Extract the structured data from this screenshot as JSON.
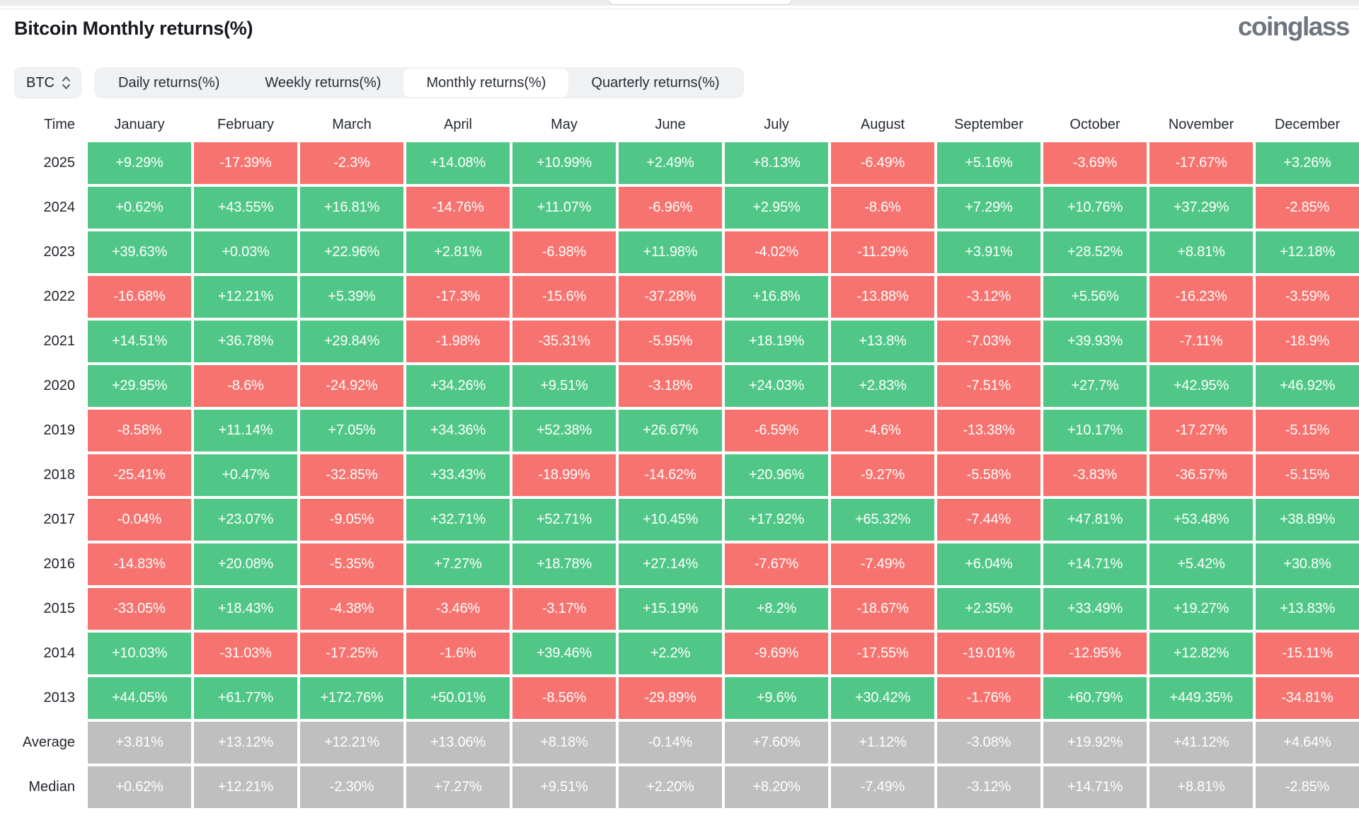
{
  "header": {
    "title": "Bitcoin Monthly returns(%)",
    "logo": "coinglass"
  },
  "controls": {
    "coin": "BTC",
    "coin_selector_icon": "updown-chevron-icon",
    "tabs": [
      {
        "id": "daily",
        "label": "Daily returns(%)",
        "selected": false
      },
      {
        "id": "weekly",
        "label": "Weekly returns(%)",
        "selected": false
      },
      {
        "id": "monthly",
        "label": "Monthly returns(%)",
        "selected": true
      },
      {
        "id": "quarterly",
        "label": "Quarterly returns(%)",
        "selected": false
      }
    ]
  },
  "colors": {
    "positive": "#50c787",
    "negative": "#f7736f",
    "summary": "#bfbfbf"
  },
  "chart_data": {
    "type": "heatmap",
    "title": "Bitcoin Monthly returns(%)",
    "row_header": "Time",
    "columns": [
      "January",
      "February",
      "March",
      "April",
      "May",
      "June",
      "July",
      "August",
      "September",
      "October",
      "November",
      "December"
    ],
    "color_rule": "green = positive return, red = negative return, gray = summary rows (Average/Median)",
    "rows": [
      {
        "label": "2025",
        "type": "year",
        "values": [
          "+9.29%",
          "-17.39%",
          "-2.3%",
          "+14.08%",
          "+10.99%",
          "+2.49%",
          "+8.13%",
          "-6.49%",
          "+5.16%",
          "-3.69%",
          "-17.67%",
          "+3.26%"
        ]
      },
      {
        "label": "2024",
        "type": "year",
        "values": [
          "+0.62%",
          "+43.55%",
          "+16.81%",
          "-14.76%",
          "+11.07%",
          "-6.96%",
          "+2.95%",
          "-8.6%",
          "+7.29%",
          "+10.76%",
          "+37.29%",
          "-2.85%"
        ]
      },
      {
        "label": "2023",
        "type": "year",
        "values": [
          "+39.63%",
          "+0.03%",
          "+22.96%",
          "+2.81%",
          "-6.98%",
          "+11.98%",
          "-4.02%",
          "-11.29%",
          "+3.91%",
          "+28.52%",
          "+8.81%",
          "+12.18%"
        ]
      },
      {
        "label": "2022",
        "type": "year",
        "values": [
          "-16.68%",
          "+12.21%",
          "+5.39%",
          "-17.3%",
          "-15.6%",
          "-37.28%",
          "+16.8%",
          "-13.88%",
          "-3.12%",
          "+5.56%",
          "-16.23%",
          "-3.59%"
        ]
      },
      {
        "label": "2021",
        "type": "year",
        "values": [
          "+14.51%",
          "+36.78%",
          "+29.84%",
          "-1.98%",
          "-35.31%",
          "-5.95%",
          "+18.19%",
          "+13.8%",
          "-7.03%",
          "+39.93%",
          "-7.11%",
          "-18.9%"
        ]
      },
      {
        "label": "2020",
        "type": "year",
        "values": [
          "+29.95%",
          "-8.6%",
          "-24.92%",
          "+34.26%",
          "+9.51%",
          "-3.18%",
          "+24.03%",
          "+2.83%",
          "-7.51%",
          "+27.7%",
          "+42.95%",
          "+46.92%"
        ]
      },
      {
        "label": "2019",
        "type": "year",
        "values": [
          "-8.58%",
          "+11.14%",
          "+7.05%",
          "+34.36%",
          "+52.38%",
          "+26.67%",
          "-6.59%",
          "-4.6%",
          "-13.38%",
          "+10.17%",
          "-17.27%",
          "-5.15%"
        ]
      },
      {
        "label": "2018",
        "type": "year",
        "values": [
          "-25.41%",
          "+0.47%",
          "-32.85%",
          "+33.43%",
          "-18.99%",
          "-14.62%",
          "+20.96%",
          "-9.27%",
          "-5.58%",
          "-3.83%",
          "-36.57%",
          "-5.15%"
        ]
      },
      {
        "label": "2017",
        "type": "year",
        "values": [
          "-0.04%",
          "+23.07%",
          "-9.05%",
          "+32.71%",
          "+52.71%",
          "+10.45%",
          "+17.92%",
          "+65.32%",
          "-7.44%",
          "+47.81%",
          "+53.48%",
          "+38.89%"
        ]
      },
      {
        "label": "2016",
        "type": "year",
        "values": [
          "-14.83%",
          "+20.08%",
          "-5.35%",
          "+7.27%",
          "+18.78%",
          "+27.14%",
          "-7.67%",
          "-7.49%",
          "+6.04%",
          "+14.71%",
          "+5.42%",
          "+30.8%"
        ]
      },
      {
        "label": "2015",
        "type": "year",
        "values": [
          "-33.05%",
          "+18.43%",
          "-4.38%",
          "-3.46%",
          "-3.17%",
          "+15.19%",
          "+8.2%",
          "-18.67%",
          "+2.35%",
          "+33.49%",
          "+19.27%",
          "+13.83%"
        ]
      },
      {
        "label": "2014",
        "type": "year",
        "values": [
          "+10.03%",
          "-31.03%",
          "-17.25%",
          "-1.6%",
          "+39.46%",
          "+2.2%",
          "-9.69%",
          "-17.55%",
          "-19.01%",
          "-12.95%",
          "+12.82%",
          "-15.11%"
        ]
      },
      {
        "label": "2013",
        "type": "year",
        "values": [
          "+44.05%",
          "+61.77%",
          "+172.76%",
          "+50.01%",
          "-8.56%",
          "-29.89%",
          "+9.6%",
          "+30.42%",
          "-1.76%",
          "+60.79%",
          "+449.35%",
          "-34.81%"
        ]
      },
      {
        "label": "Average",
        "type": "summary",
        "values": [
          "+3.81%",
          "+13.12%",
          "+12.21%",
          "+13.06%",
          "+8.18%",
          "-0.14%",
          "+7.60%",
          "+1.12%",
          "-3.08%",
          "+19.92%",
          "+41.12%",
          "+4.64%"
        ]
      },
      {
        "label": "Median",
        "type": "summary",
        "values": [
          "+0.62%",
          "+12.21%",
          "-2.30%",
          "+7.27%",
          "+9.51%",
          "+2.20%",
          "+8.20%",
          "-7.49%",
          "-3.12%",
          "+14.71%",
          "+8.81%",
          "-2.85%"
        ]
      }
    ]
  }
}
